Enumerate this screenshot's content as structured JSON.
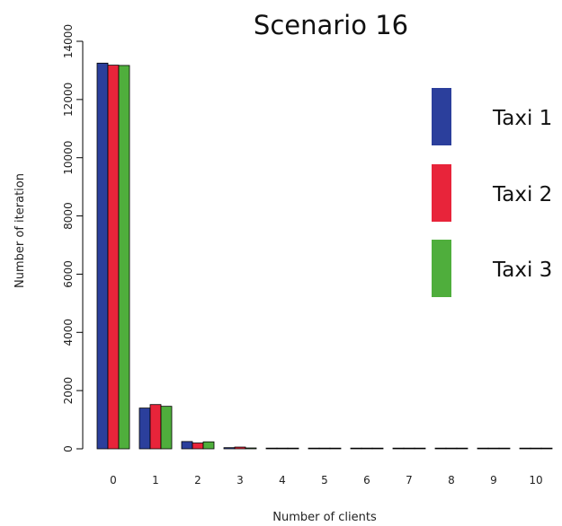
{
  "chart_data": {
    "type": "bar",
    "title": "Scenario 16",
    "xlabel": "Number of clients",
    "ylabel": "Number of iteration",
    "categories": [
      "0",
      "1",
      "2",
      "3",
      "4",
      "5",
      "6",
      "7",
      "8",
      "9",
      "10"
    ],
    "ylim": [
      0,
      14000
    ],
    "yticks": [
      0,
      2000,
      4000,
      6000,
      8000,
      10000,
      12000,
      14000
    ],
    "grid": false,
    "legend_position": "right",
    "series": [
      {
        "name": "Taxi 1",
        "color": "#2b3f9c",
        "values": [
          13250,
          1400,
          250,
          40,
          5,
          0,
          0,
          0,
          0,
          0,
          0
        ]
      },
      {
        "name": "Taxi 2",
        "color": "#e8243a",
        "values": [
          13180,
          1520,
          200,
          60,
          5,
          0,
          0,
          0,
          0,
          0,
          0
        ]
      },
      {
        "name": "Taxi 3",
        "color": "#4fae3c",
        "values": [
          13170,
          1460,
          240,
          30,
          5,
          0,
          0,
          0,
          0,
          0,
          0
        ]
      }
    ]
  }
}
